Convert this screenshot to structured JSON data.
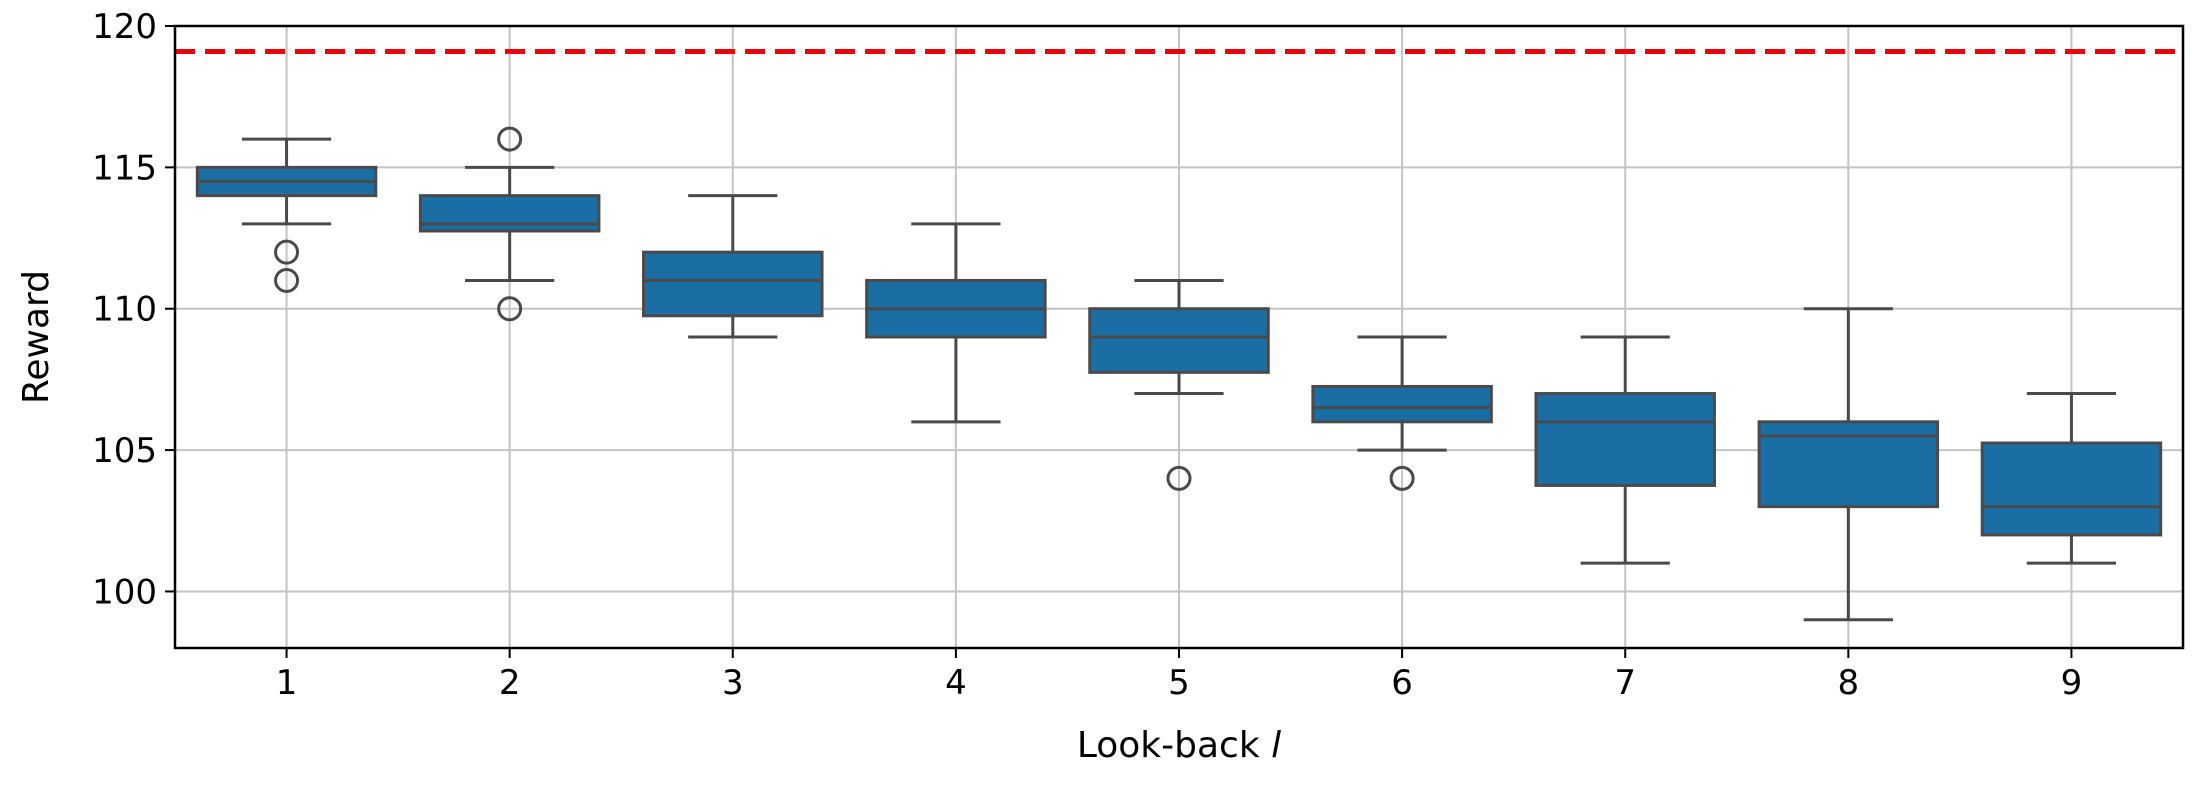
{
  "chart_data": {
    "type": "box",
    "xlabel": "Look-back",
    "xlabel_symbol": "l",
    "ylabel": "Reward",
    "ylim": [
      98,
      120
    ],
    "yticks": [
      100,
      105,
      110,
      115,
      120
    ],
    "grid": true,
    "reference_line": {
      "value": 119.1,
      "color": "#e8000b",
      "style": "dashed"
    },
    "box_color": "#1a6ea3",
    "line_color": "#4a4a4a",
    "categories": [
      "1",
      "2",
      "3",
      "4",
      "5",
      "6",
      "7",
      "8",
      "9"
    ],
    "boxes": [
      {
        "category": "1",
        "whisker_low": 113,
        "q1": 114,
        "median": 114.5,
        "q3": 115,
        "whisker_high": 116,
        "outliers": [
          112,
          111
        ]
      },
      {
        "category": "2",
        "whisker_low": 111,
        "q1": 112.75,
        "median": 113,
        "q3": 114,
        "whisker_high": 115,
        "outliers": [
          116,
          110
        ]
      },
      {
        "category": "3",
        "whisker_low": 109,
        "q1": 109.75,
        "median": 111,
        "q3": 112,
        "whisker_high": 114,
        "outliers": []
      },
      {
        "category": "4",
        "whisker_low": 106,
        "q1": 109,
        "median": 110,
        "q3": 111,
        "whisker_high": 113,
        "outliers": []
      },
      {
        "category": "5",
        "whisker_low": 107,
        "q1": 107.75,
        "median": 109,
        "q3": 110,
        "whisker_high": 111,
        "outliers": [
          104
        ]
      },
      {
        "category": "6",
        "whisker_low": 105,
        "q1": 106,
        "median": 106.5,
        "q3": 107.25,
        "whisker_high": 109,
        "outliers": [
          104
        ]
      },
      {
        "category": "7",
        "whisker_low": 101,
        "q1": 103.75,
        "median": 106,
        "q3": 107,
        "whisker_high": 109,
        "outliers": []
      },
      {
        "category": "8",
        "whisker_low": 99,
        "q1": 103,
        "median": 105.5,
        "q3": 106,
        "whisker_high": 110,
        "outliers": []
      },
      {
        "category": "9",
        "whisker_low": 101,
        "q1": 102,
        "median": 103,
        "q3": 105.25,
        "whisker_high": 107,
        "outliers": []
      }
    ]
  }
}
